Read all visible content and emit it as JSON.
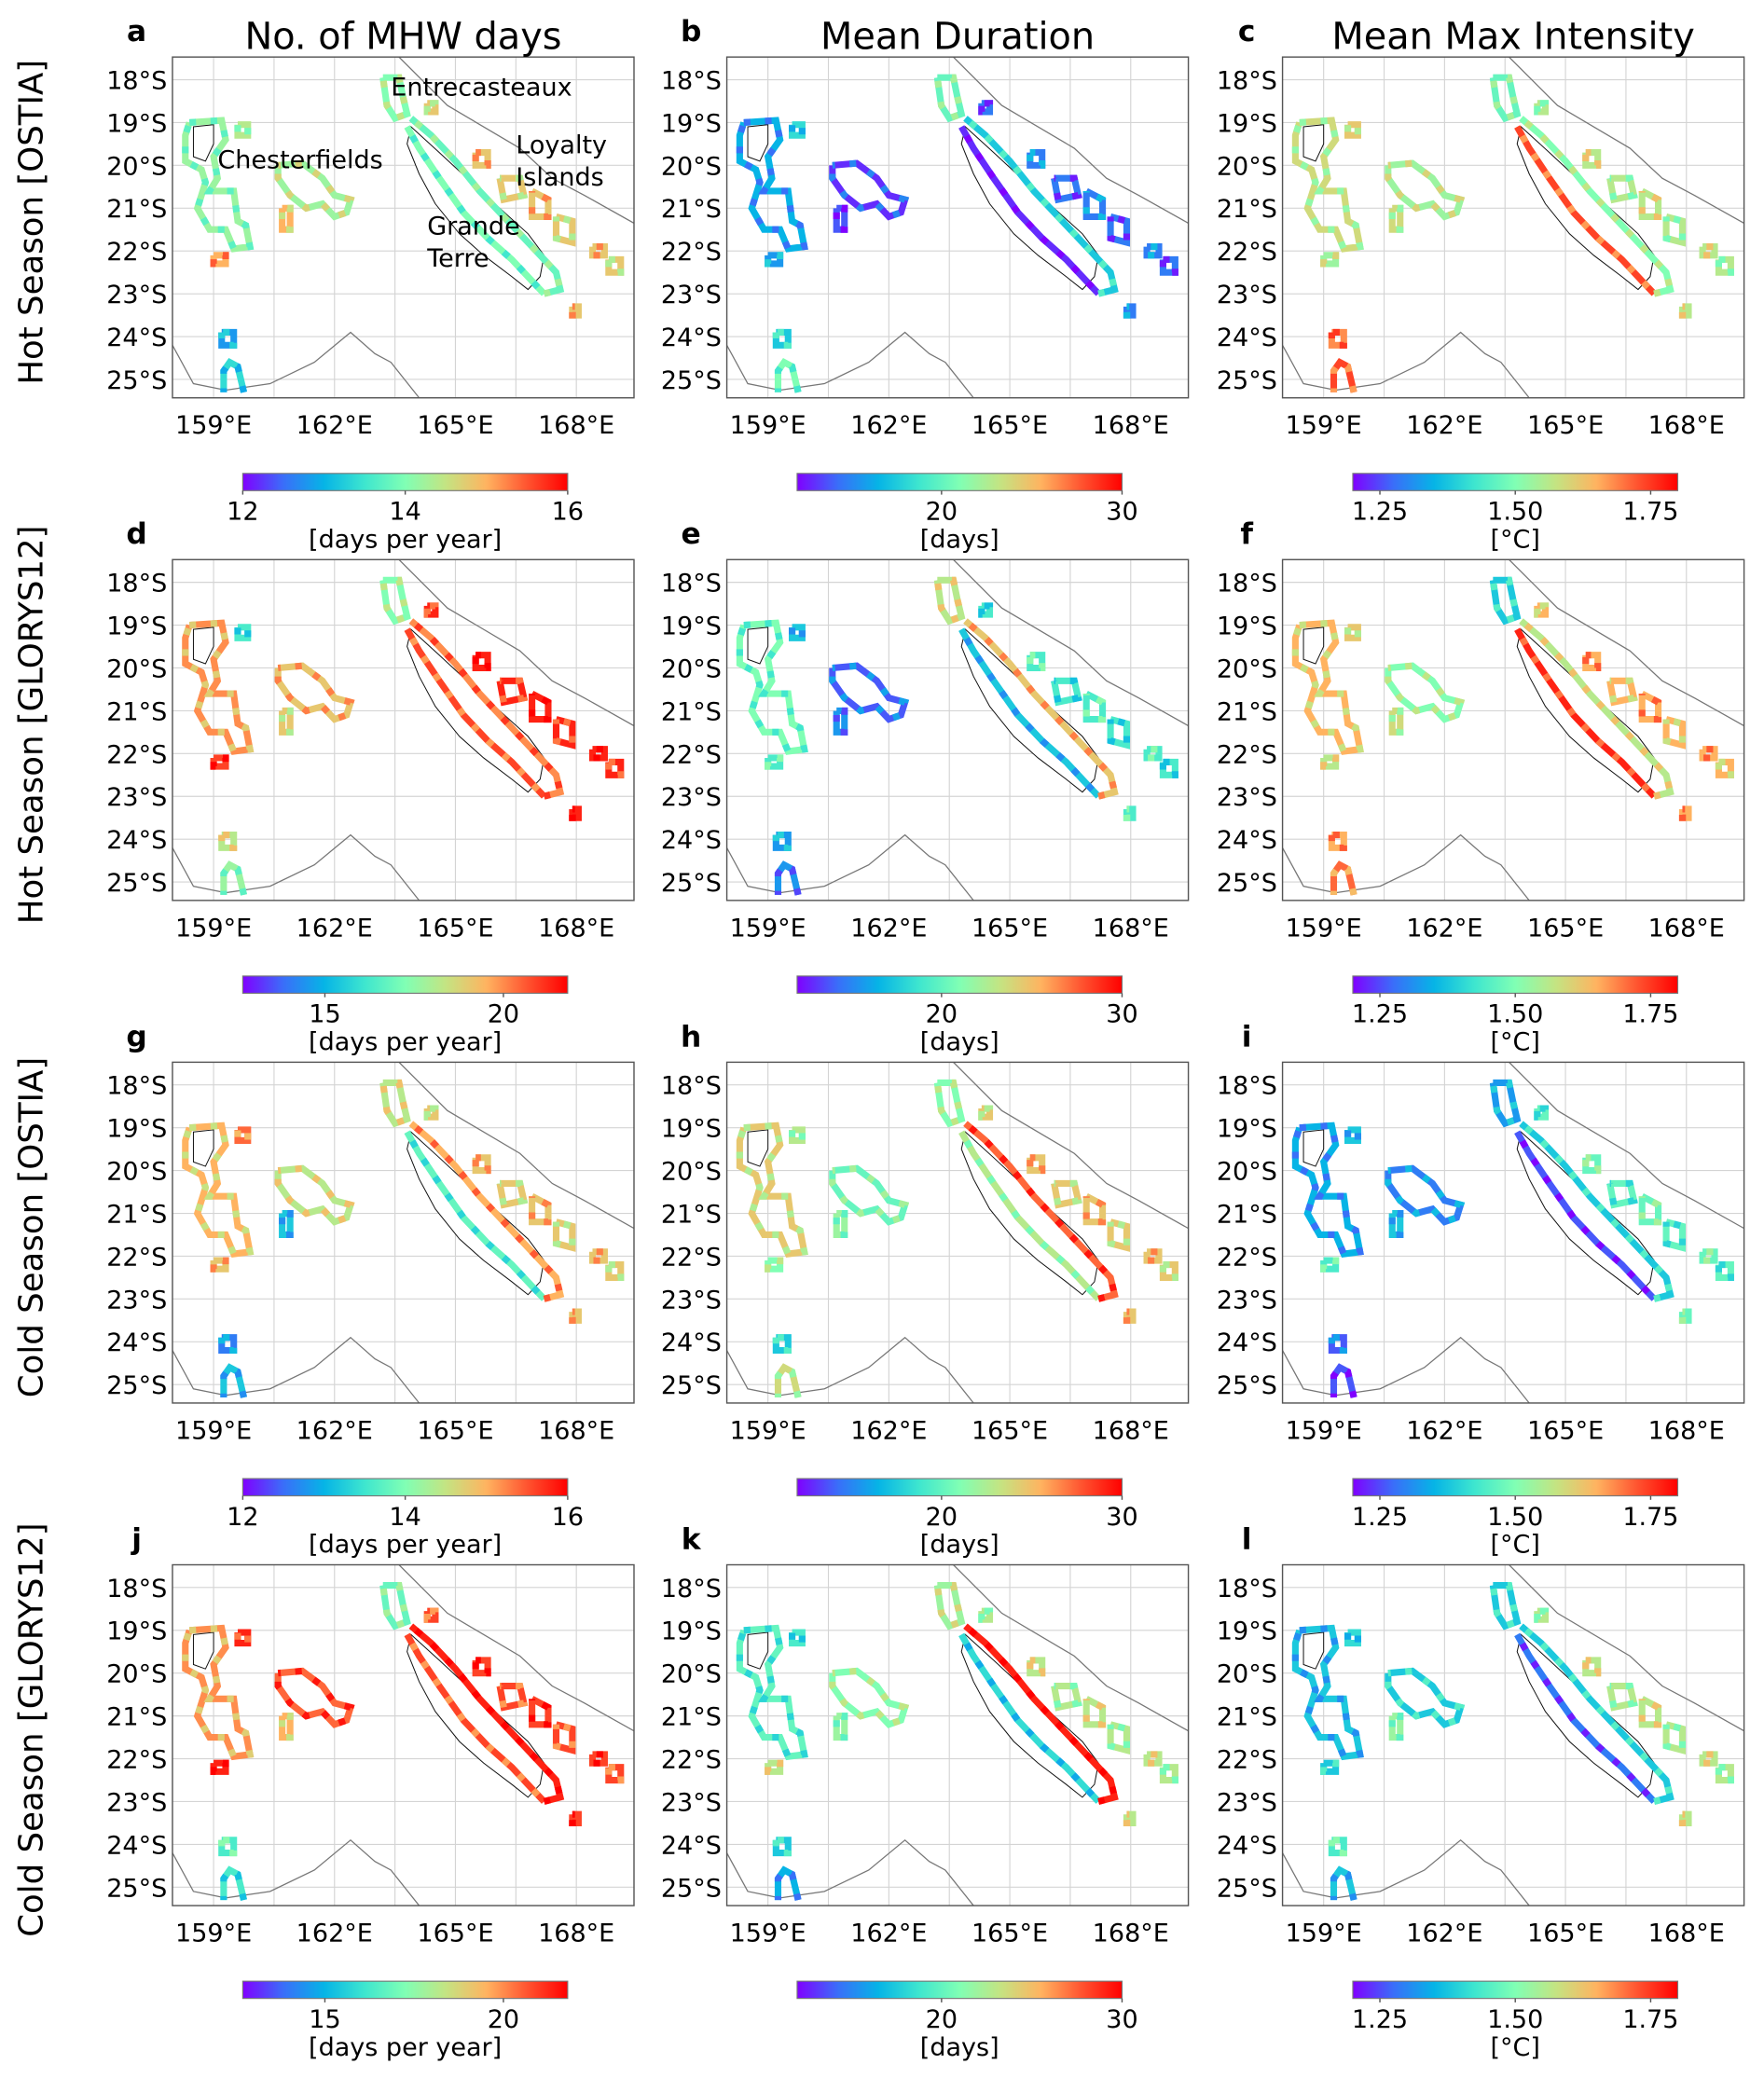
{
  "column_titles": [
    "No. of MHW days",
    "Mean Duration",
    "Mean Max Intensity"
  ],
  "row_labels": [
    "Hot Season [OSTIA]",
    "Hot Season [GLORYS12]",
    "Cold Season [OSTIA]",
    "Cold Season [GLORYS12]"
  ],
  "map_extent": {
    "lon": [
      157.98,
      169.43
    ],
    "lat_south": [
      17.47,
      25.43
    ]
  },
  "lon_ticks": [
    159,
    162,
    165,
    168
  ],
  "lon_tick_labels": [
    "159°E",
    "162°E",
    "165°E",
    "168°E"
  ],
  "lat_ticks": [
    18,
    19,
    20,
    21,
    22,
    23,
    24,
    25
  ],
  "lat_tick_labels": [
    "18°S",
    "19°S",
    "20°S",
    "21°S",
    "22°S",
    "23°S",
    "24°S",
    "25°S"
  ],
  "annotations": [
    {
      "text": "Entrecasteaux",
      "lon": 163.4,
      "lat": 18.15
    },
    {
      "text": "Chesterfields",
      "lon": 159.1,
      "lat": 19.85
    },
    {
      "text": "Loyalty",
      "lon": 166.5,
      "lat": 19.5
    },
    {
      "text": "Islands",
      "lon": 166.5,
      "lat": 20.25
    },
    {
      "text": "Grande",
      "lon": 164.3,
      "lat": 21.4
    },
    {
      "text": "Terre",
      "lon": 164.3,
      "lat": 22.15
    }
  ],
  "colormap": "rainbow",
  "colormap_stops": [
    "#8000ff",
    "#3a6ef9",
    "#06b4e6",
    "#3ee6cf",
    "#80ffb4",
    "#c4e482",
    "#ffb360",
    "#ff5430",
    "#ff0000"
  ],
  "colorbars": [
    [
      {
        "range": [
          12,
          16
        ],
        "ticks": [
          12,
          14,
          16
        ],
        "tick_labels": [
          "12",
          "14",
          "16"
        ],
        "label": "[days per year]"
      },
      {
        "range": [
          12,
          30
        ],
        "ticks": [
          20,
          30
        ],
        "tick_labels": [
          "20",
          "30"
        ],
        "label": "[days]"
      },
      {
        "range": [
          1.2,
          1.8
        ],
        "ticks": [
          1.25,
          1.5,
          1.75
        ],
        "tick_labels": [
          "1.25",
          "1.50",
          "1.75"
        ],
        "label": "[°C]"
      }
    ],
    [
      {
        "range": [
          12.7,
          21.8
        ],
        "ticks": [
          15,
          20
        ],
        "tick_labels": [
          "15",
          "20"
        ],
        "label": "[days per year]"
      },
      {
        "range": [
          12,
          30
        ],
        "ticks": [
          20,
          30
        ],
        "tick_labels": [
          "20",
          "30"
        ],
        "label": "[days]"
      },
      {
        "range": [
          1.2,
          1.8
        ],
        "ticks": [
          1.25,
          1.5,
          1.75
        ],
        "tick_labels": [
          "1.25",
          "1.50",
          "1.75"
        ],
        "label": "[°C]"
      }
    ],
    [
      {
        "range": [
          12,
          16
        ],
        "ticks": [
          12,
          14,
          16
        ],
        "tick_labels": [
          "12",
          "14",
          "16"
        ],
        "label": "[days per year]"
      },
      {
        "range": [
          12,
          30
        ],
        "ticks": [
          20,
          30
        ],
        "tick_labels": [
          "20",
          "30"
        ],
        "label": "[days]"
      },
      {
        "range": [
          1.2,
          1.8
        ],
        "ticks": [
          1.25,
          1.5,
          1.75
        ],
        "tick_labels": [
          "1.25",
          "1.50",
          "1.75"
        ],
        "label": "[°C]"
      }
    ],
    [
      {
        "range": [
          12.7,
          21.8
        ],
        "ticks": [
          15,
          20
        ],
        "tick_labels": [
          "15",
          "20"
        ],
        "label": "[days per year]"
      },
      {
        "range": [
          12,
          30
        ],
        "ticks": [
          20,
          30
        ],
        "tick_labels": [
          "20",
          "30"
        ],
        "label": "[days]"
      },
      {
        "range": [
          1.2,
          1.8
        ],
        "ticks": [
          1.25,
          1.5,
          1.75
        ],
        "tick_labels": [
          "1.25",
          "1.50",
          "1.75"
        ],
        "label": "[°C]"
      }
    ]
  ],
  "panels": [
    {
      "letter": "a",
      "levels": {
        "chest": 0.55,
        "bellona": 0.55,
        "sq1": 0.6,
        "sq2": 0.75,
        "sq3": 0.75,
        "s1": 0.2,
        "s2": 0.35,
        "entre": 0.5,
        "gtw": 0.5,
        "gte": 0.45,
        "loy": 0.7
      }
    },
    {
      "letter": "b",
      "levels": {
        "chest": 0.25,
        "bellona": 0.05,
        "sq1": 0.35,
        "sq2": 0.2,
        "sq3": 0.1,
        "s1": 0.3,
        "s2": 0.5,
        "entre": 0.45,
        "gtw": 0.05,
        "gte": 0.3,
        "loy": 0.15
      }
    },
    {
      "letter": "c",
      "levels": {
        "chest": 0.65,
        "bellona": 0.55,
        "sq1": 0.7,
        "sq2": 0.55,
        "sq3": 0.65,
        "s1": 0.8,
        "s2": 0.9,
        "entre": 0.45,
        "gtw": 0.9,
        "gte": 0.5,
        "loy": 0.6
      }
    },
    {
      "letter": "d",
      "levels": {
        "chest": 0.8,
        "bellona": 0.7,
        "sq1": 0.4,
        "sq2": 0.9,
        "sq3": 0.7,
        "s1": 0.6,
        "s2": 0.55,
        "entre": 0.5,
        "gtw": 0.9,
        "gte": 0.8,
        "loy": 0.95
      }
    },
    {
      "letter": "e",
      "levels": {
        "chest": 0.5,
        "bellona": 0.1,
        "sq1": 0.3,
        "sq2": 0.4,
        "sq3": 0.2,
        "s1": 0.2,
        "s2": 0.2,
        "entre": 0.6,
        "gtw": 0.3,
        "gte": 0.7,
        "loy": 0.4
      }
    },
    {
      "letter": "f",
      "levels": {
        "chest": 0.75,
        "bellona": 0.5,
        "sq1": 0.7,
        "sq2": 0.6,
        "sq3": 0.65,
        "s1": 0.75,
        "s2": 0.85,
        "entre": 0.3,
        "gtw": 0.95,
        "gte": 0.6,
        "loy": 0.75
      }
    },
    {
      "letter": "g",
      "levels": {
        "chest": 0.75,
        "bellona": 0.6,
        "sq1": 0.85,
        "sq2": 0.7,
        "sq3": 0.3,
        "s1": 0.15,
        "s2": 0.3,
        "entre": 0.6,
        "gtw": 0.45,
        "gte": 0.75,
        "loy": 0.7
      }
    },
    {
      "letter": "h",
      "levels": {
        "chest": 0.7,
        "bellona": 0.45,
        "sq1": 0.6,
        "sq2": 0.5,
        "sq3": 0.55,
        "s1": 0.3,
        "s2": 0.65,
        "entre": 0.5,
        "gtw": 0.6,
        "gte": 0.85,
        "loy": 0.7
      }
    },
    {
      "letter": "i",
      "levels": {
        "chest": 0.25,
        "bellona": 0.15,
        "sq1": 0.3,
        "sq2": 0.4,
        "sq3": 0.3,
        "s1": 0.1,
        "s2": 0.1,
        "entre": 0.2,
        "gtw": 0.1,
        "gte": 0.3,
        "loy": 0.45
      }
    },
    {
      "letter": "j",
      "levels": {
        "chest": 0.8,
        "bellona": 0.85,
        "sq1": 0.95,
        "sq2": 0.95,
        "sq3": 0.75,
        "s1": 0.4,
        "s2": 0.4,
        "entre": 0.45,
        "gtw": 0.9,
        "gte": 0.95,
        "loy": 0.9
      }
    },
    {
      "letter": "k",
      "levels": {
        "chest": 0.45,
        "bellona": 0.5,
        "sq1": 0.4,
        "sq2": 0.6,
        "sq3": 0.55,
        "s1": 0.3,
        "s2": 0.25,
        "entre": 0.55,
        "gtw": 0.35,
        "gte": 0.95,
        "loy": 0.6
      }
    },
    {
      "letter": "l",
      "levels": {
        "chest": 0.3,
        "bellona": 0.3,
        "sq1": 0.35,
        "sq2": 0.3,
        "sq3": 0.55,
        "s1": 0.4,
        "s2": 0.3,
        "entre": 0.3,
        "gtw": 0.15,
        "gte": 0.3,
        "loy": 0.6
      }
    }
  ]
}
